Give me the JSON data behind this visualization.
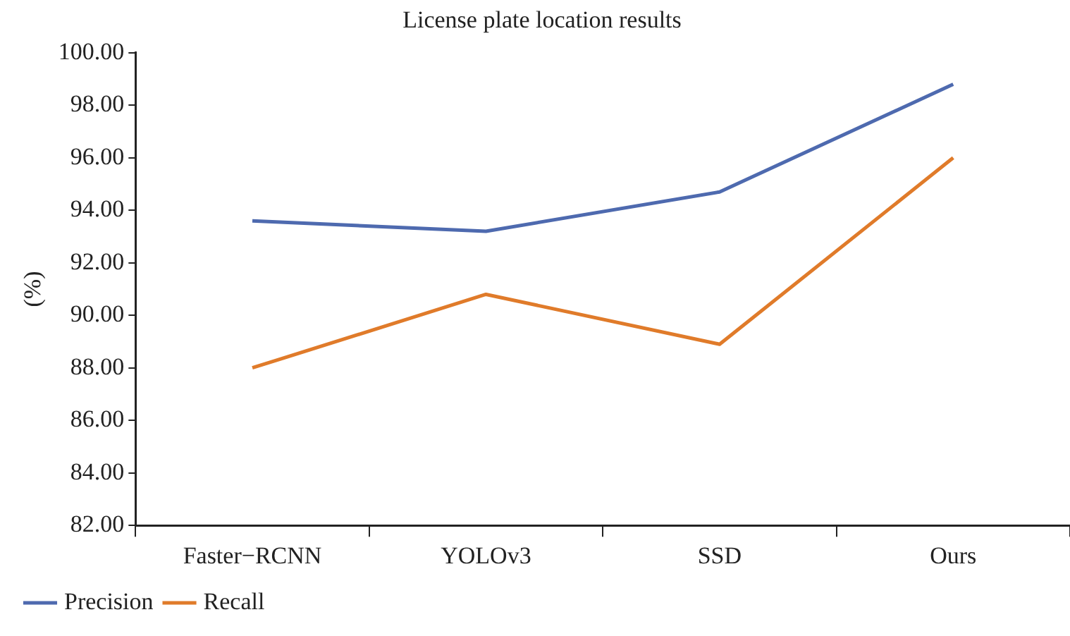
{
  "chart_data": {
    "type": "line",
    "title": "License plate location results",
    "ylabel": "(%)",
    "categories": [
      "Faster−RCNN",
      "YOLOv3",
      "SSD",
      "Ours"
    ],
    "series": [
      {
        "name": "Precision",
        "color": "#4e6aaf",
        "values": [
          93.6,
          93.2,
          94.7,
          98.8
        ]
      },
      {
        "name": "Recall",
        "color": "#e07b2a",
        "values": [
          88.0,
          90.8,
          88.9,
          96.0
        ]
      }
    ],
    "ylim": [
      82,
      100
    ],
    "yticks": [
      {
        "value": 82,
        "label": "82.00"
      },
      {
        "value": 84,
        "label": "84.00"
      },
      {
        "value": 86,
        "label": "86.00"
      },
      {
        "value": 88,
        "label": "88.00"
      },
      {
        "value": 90,
        "label": "90.00"
      },
      {
        "value": 92,
        "label": "92.00"
      },
      {
        "value": 94,
        "label": "94.00"
      },
      {
        "value": 96,
        "label": "96.00"
      },
      {
        "value": 98,
        "label": "98.00"
      },
      {
        "value": 100,
        "label": "100.00"
      }
    ],
    "grid": false,
    "legend": "bottom left",
    "marker": "none",
    "line_style": "solid"
  }
}
